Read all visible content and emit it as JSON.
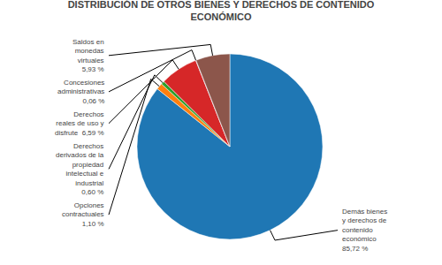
{
  "chart_data": {
    "type": "pie",
    "title": "DISTRIBUCIÓN DE OTROS BIENES Y DERECHOS DE CONTENIDO\nECONÓMICO",
    "categories": [
      "Demás bienes\ny derechos de\ncontenido\neconómico\n85,72 %",
      "Opciones\ncontractuales\n1,10 %",
      "Derechos\nderivados de la\npropiedad\nintelectual e\nindustrial\n0,60 %",
      "Derechos\nreales de uso y\ndisfrute  6,59 %",
      "Concesiones\nadministrativas\n0,06 %",
      "Saldos en\nmonedas\nvirtuales\n5,93 %"
    ],
    "values": [
      85.72,
      1.1,
      0.6,
      6.59,
      0.06,
      5.93
    ]
  }
}
